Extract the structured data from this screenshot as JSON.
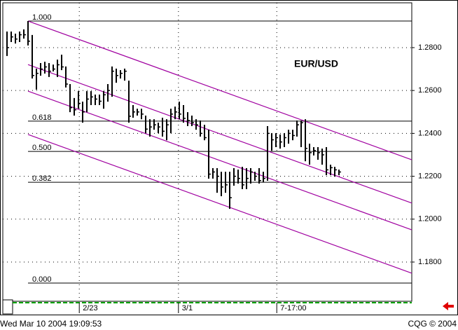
{
  "chart_data": {
    "type": "ohlc",
    "title": "EUR/USD",
    "color": "#000000",
    "x": [
      0,
      1,
      2,
      3,
      4,
      5,
      6,
      7,
      8,
      9,
      10,
      11,
      12,
      13,
      14,
      15,
      16,
      17,
      18,
      19,
      20,
      21,
      22,
      23,
      24,
      25,
      26,
      27,
      28,
      29,
      30,
      31,
      32,
      33,
      34,
      35,
      36,
      37,
      38,
      39,
      40,
      41,
      42,
      43,
      44,
      45,
      46,
      47,
      48,
      49,
      50,
      51,
      52,
      53,
      54,
      55,
      56,
      57,
      58,
      59,
      60,
      61,
      62,
      63,
      64,
      65,
      66,
      67,
      68,
      69,
      70,
      71,
      72,
      73,
      74,
      75,
      76,
      77,
      78,
      79
    ],
    "high": [
      1.2875,
      1.2875,
      1.2865,
      1.2875,
      1.2885,
      1.2924,
      1.2859,
      1.2702,
      1.2728,
      1.2734,
      1.2728,
      1.2721,
      1.2744,
      1.2767,
      1.2712,
      1.263,
      1.2565,
      1.2597,
      1.2548,
      1.2597,
      1.2597,
      1.2581,
      1.2581,
      1.2597,
      1.263,
      1.2712,
      1.2702,
      1.2695,
      1.2702,
      1.2646,
      1.2532,
      1.2515,
      1.2515,
      1.2483,
      1.2466,
      1.2466,
      1.245,
      1.2473,
      1.2466,
      1.2515,
      1.2525,
      1.2548,
      1.2532,
      1.2499,
      1.2483,
      1.2466,
      1.246,
      1.244,
      1.2417,
      1.2238,
      1.2238,
      1.2221,
      1.2221,
      1.2221,
      1.2238,
      1.2231,
      1.2244,
      1.2238,
      1.2238,
      1.2221,
      1.2238,
      1.2221,
      1.2434,
      1.2401,
      1.2401,
      1.2395,
      1.2401,
      1.2417,
      1.2417,
      1.246,
      1.246,
      1.2466,
      1.2352,
      1.2336,
      1.2336,
      1.2329,
      1.2336,
      1.2254,
      1.2244,
      1.2231
    ],
    "low": [
      1.2761,
      1.2826,
      1.2819,
      1.2826,
      1.2842,
      1.281,
      1.2656,
      1.2604,
      1.2669,
      1.2679,
      1.2663,
      1.2689,
      1.2663,
      1.2695,
      1.2614,
      1.2499,
      1.2483,
      1.2515,
      1.245,
      1.2499,
      1.2532,
      1.2532,
      1.2532,
      1.2515,
      1.2548,
      1.2571,
      1.2636,
      1.2656,
      1.2646,
      1.245,
      1.2473,
      1.2483,
      1.2466,
      1.2401,
      1.2385,
      1.2417,
      1.2401,
      1.2385,
      1.2368,
      1.2401,
      1.2466,
      1.2466,
      1.245,
      1.2434,
      1.2434,
      1.2417,
      1.2385,
      1.2368,
      1.2189,
      1.2189,
      1.2123,
      1.2107,
      1.2123,
      1.2048,
      1.2156,
      1.2166,
      1.214,
      1.214,
      1.2166,
      1.2179,
      1.2166,
      1.2172,
      1.2179,
      1.2319,
      1.2336,
      1.2329,
      1.2336,
      1.2352,
      1.2368,
      1.2385,
      1.2336,
      1.227,
      1.2254,
      1.2297,
      1.2277,
      1.2254,
      1.2205,
      1.2205,
      1.2198,
      1.2205
    ],
    "close": [
      1.28,
      1.285,
      1.284,
      1.286,
      1.286,
      1.283,
      1.267,
      1.268,
      1.27,
      1.271,
      1.269,
      1.27,
      1.272,
      1.271,
      1.263,
      1.252,
      1.251,
      1.254,
      1.25,
      1.256,
      1.257,
      1.256,
      1.255,
      1.258,
      1.26,
      1.269,
      1.267,
      1.268,
      1.269,
      1.248,
      1.25,
      1.25,
      1.249,
      1.242,
      1.243,
      1.244,
      1.243,
      1.241,
      1.244,
      1.249,
      1.25,
      1.249,
      1.247,
      1.246,
      1.245,
      1.244,
      1.24,
      1.238,
      1.221,
      1.222,
      1.22,
      1.215,
      1.216,
      1.21,
      1.22,
      1.219,
      1.216,
      1.219,
      1.222,
      1.22,
      1.218,
      1.219,
      1.24,
      1.237,
      1.238,
      1.236,
      1.238,
      1.24,
      1.239,
      1.244,
      1.245,
      1.233,
      1.231,
      1.232,
      1.231,
      1.23,
      1.223,
      1.224,
      1.223,
      1.222
    ],
    "xlim": [
      -1,
      96.33
    ],
    "ylim": [
      1.1617,
      1.3009
    ],
    "yticks": [
      {
        "value": 1.28,
        "label": "1.2800"
      },
      {
        "value": 1.26,
        "label": "1.2600"
      },
      {
        "value": 1.24,
        "label": "1.2400"
      },
      {
        "value": 1.22,
        "label": "1.2200"
      },
      {
        "value": 1.2,
        "label": "1.2000"
      },
      {
        "value": 1.18,
        "label": "1.1800"
      }
    ],
    "xticks": [
      {
        "value": 17.2,
        "label": "2/23"
      },
      {
        "value": 40.8,
        "label": "3/1"
      },
      {
        "value": 64.2,
        "label": "7-17:00"
      }
    ],
    "grid": true,
    "channel_lines": [
      {
        "color": "#a000a0",
        "x": [
          5,
          96.33
        ],
        "y": [
          1.2924,
          1.2277
        ]
      },
      {
        "color": "#a000a0",
        "x": [
          5,
          96.33
        ],
        "y": [
          1.2721,
          1.2075
        ]
      },
      {
        "color": "#a000a0",
        "x": [
          5,
          96.33
        ],
        "y": [
          1.2597,
          1.195
        ]
      },
      {
        "color": "#a000a0",
        "x": [
          5,
          96.33
        ],
        "y": [
          1.2395,
          1.1748
        ]
      }
    ],
    "fib_levels": [
      {
        "label": "1.000",
        "value": 1.2924
      },
      {
        "label": "0.618",
        "value": 1.2457
      },
      {
        "label": "0.500",
        "value": 1.2316
      },
      {
        "label": "0.382",
        "value": 1.2172
      },
      {
        "label": "0.000",
        "value": 1.1702
      }
    ]
  },
  "status_bar": {
    "timestamp": "Wed Mar 10 2004 19:09:53",
    "copyright": "CQG © 2004"
  }
}
